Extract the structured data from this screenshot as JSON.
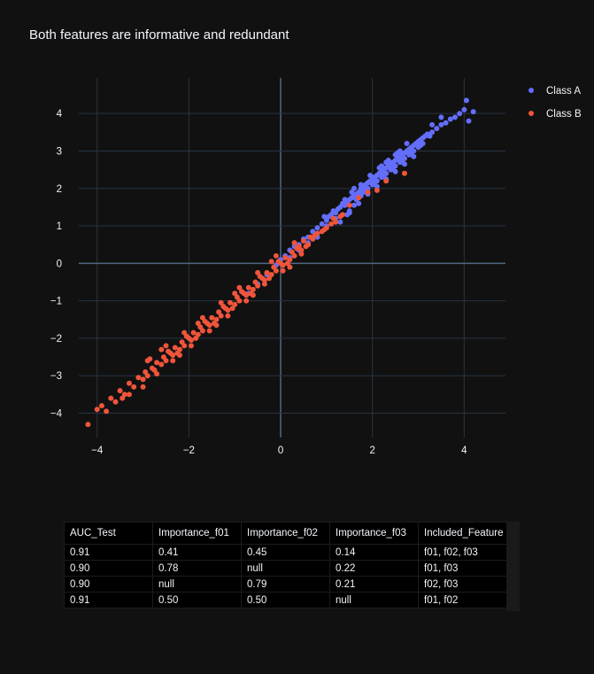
{
  "chart_data": {
    "type": "scatter",
    "title": "Both features are informative and redundant",
    "xlabel": "",
    "ylabel": "",
    "xlim": [
      -4.4,
      4.9
    ],
    "ylim": [
      -4.65,
      4.95
    ],
    "x_ticks": [
      -4,
      -2,
      0,
      2,
      4
    ],
    "x_tick_labels": [
      "−4",
      "−2",
      "0",
      "2",
      "4"
    ],
    "y_ticks": [
      -4,
      -3,
      -2,
      -1,
      0,
      1,
      2,
      3,
      4
    ],
    "y_tick_labels": [
      "−4",
      "−3",
      "−2",
      "−1",
      "0",
      "1",
      "2",
      "3",
      "4"
    ],
    "grid": true,
    "legend_position": "top-right",
    "series": [
      {
        "name": "Class A",
        "color": "#636efa",
        "points": [
          [
            -0.7,
            -0.8
          ],
          [
            -0.5,
            -0.55
          ],
          [
            -0.3,
            -0.3
          ],
          [
            -0.1,
            -0.05
          ],
          [
            0.0,
            0.1
          ],
          [
            0.1,
            0.2
          ],
          [
            0.2,
            0.35
          ],
          [
            0.3,
            0.45
          ],
          [
            0.4,
            0.5
          ],
          [
            0.5,
            0.65
          ],
          [
            0.6,
            0.7
          ],
          [
            0.7,
            0.85
          ],
          [
            0.8,
            0.95
          ],
          [
            0.9,
            1.05
          ],
          [
            1.0,
            1.15
          ],
          [
            1.05,
            1.25
          ],
          [
            1.1,
            1.3
          ],
          [
            1.2,
            1.35
          ],
          [
            1.25,
            1.45
          ],
          [
            1.3,
            1.5
          ],
          [
            1.4,
            1.55
          ],
          [
            1.45,
            1.65
          ],
          [
            1.5,
            1.7
          ],
          [
            1.55,
            1.75
          ],
          [
            1.6,
            1.8
          ],
          [
            1.65,
            1.85
          ],
          [
            1.7,
            1.9
          ],
          [
            1.75,
            2.0
          ],
          [
            1.8,
            2.05
          ],
          [
            1.85,
            2.1
          ],
          [
            1.9,
            2.15
          ],
          [
            1.95,
            2.2
          ],
          [
            2.0,
            2.25
          ],
          [
            2.05,
            2.3
          ],
          [
            2.1,
            2.35
          ],
          [
            2.15,
            2.4
          ],
          [
            2.2,
            2.45
          ],
          [
            2.25,
            2.5
          ],
          [
            2.3,
            2.55
          ],
          [
            2.35,
            2.6
          ],
          [
            2.4,
            2.65
          ],
          [
            2.45,
            2.7
          ],
          [
            2.5,
            2.75
          ],
          [
            2.55,
            2.8
          ],
          [
            2.6,
            2.85
          ],
          [
            2.65,
            2.9
          ],
          [
            2.7,
            2.95
          ],
          [
            2.75,
            3.0
          ],
          [
            2.8,
            3.05
          ],
          [
            2.85,
            3.1
          ],
          [
            2.9,
            3.15
          ],
          [
            2.95,
            3.2
          ],
          [
            3.0,
            3.25
          ],
          [
            3.05,
            3.3
          ],
          [
            3.1,
            3.35
          ],
          [
            3.15,
            3.4
          ],
          [
            3.2,
            3.45
          ],
          [
            3.3,
            3.5
          ],
          [
            3.4,
            3.6
          ],
          [
            3.5,
            3.7
          ],
          [
            3.6,
            3.75
          ],
          [
            3.7,
            3.85
          ],
          [
            3.8,
            3.9
          ],
          [
            3.9,
            4.0
          ],
          [
            4.0,
            4.1
          ],
          [
            4.05,
            4.35
          ],
          [
            4.2,
            4.05
          ],
          [
            4.1,
            3.8
          ],
          [
            3.5,
            3.9
          ],
          [
            3.3,
            3.7
          ],
          [
            1.6,
            1.55
          ],
          [
            1.8,
            1.9
          ],
          [
            2.0,
            2.1
          ],
          [
            2.2,
            2.3
          ],
          [
            2.4,
            2.5
          ],
          [
            2.6,
            2.7
          ],
          [
            2.8,
            2.9
          ],
          [
            3.0,
            3.1
          ],
          [
            2.2,
            2.6
          ],
          [
            2.5,
            2.9
          ],
          [
            1.4,
            1.7
          ],
          [
            1.6,
            2.0
          ],
          [
            1.7,
            1.75
          ],
          [
            1.9,
            2.0
          ],
          [
            2.1,
            2.2
          ],
          [
            2.3,
            2.4
          ],
          [
            2.5,
            2.6
          ],
          [
            2.7,
            2.8
          ],
          [
            2.9,
            3.0
          ],
          [
            3.1,
            3.2
          ],
          [
            1.5,
            1.4
          ],
          [
            1.7,
            1.6
          ],
          [
            1.9,
            1.85
          ],
          [
            2.1,
            2.05
          ],
          [
            2.3,
            2.25
          ],
          [
            2.5,
            2.45
          ],
          [
            2.7,
            2.65
          ],
          [
            2.9,
            2.85
          ],
          [
            1.2,
            1.2
          ],
          [
            1.0,
            1.0
          ],
          [
            0.8,
            0.7
          ],
          [
            0.6,
            0.55
          ],
          [
            0.4,
            0.35
          ],
          [
            0.2,
            0.15
          ],
          [
            1.3,
            1.1
          ],
          [
            1.5,
            1.35
          ],
          [
            1.75,
            1.8
          ],
          [
            2.0,
            2.3
          ],
          [
            2.3,
            2.7
          ],
          [
            2.6,
            3.0
          ],
          [
            1.45,
            1.3
          ],
          [
            1.65,
            1.7
          ],
          [
            1.85,
            1.95
          ],
          [
            2.05,
            2.15
          ],
          [
            2.25,
            2.35
          ],
          [
            2.45,
            2.55
          ],
          [
            2.65,
            2.75
          ],
          [
            2.85,
            2.95
          ],
          [
            3.05,
            3.15
          ],
          [
            3.25,
            3.4
          ],
          [
            1.55,
            1.9
          ],
          [
            1.75,
            2.1
          ],
          [
            1.95,
            2.35
          ],
          [
            2.15,
            2.55
          ],
          [
            2.35,
            2.75
          ],
          [
            2.55,
            2.95
          ],
          [
            2.75,
            3.2
          ],
          [
            1.35,
            1.6
          ],
          [
            1.15,
            1.4
          ],
          [
            0.95,
            1.25
          ]
        ]
      },
      {
        "name": "Class B",
        "color": "#ef553b",
        "points": [
          [
            -4.2,
            -4.3
          ],
          [
            -4.0,
            -3.9
          ],
          [
            -3.9,
            -3.8
          ],
          [
            -3.8,
            -3.95
          ],
          [
            -3.7,
            -3.6
          ],
          [
            -3.6,
            -3.7
          ],
          [
            -3.5,
            -3.4
          ],
          [
            -3.4,
            -3.5
          ],
          [
            -3.3,
            -3.2
          ],
          [
            -3.2,
            -3.3
          ],
          [
            -3.1,
            -3.05
          ],
          [
            -3.0,
            -3.1
          ],
          [
            -2.95,
            -2.9
          ],
          [
            -2.9,
            -3.0
          ],
          [
            -2.8,
            -2.8
          ],
          [
            -2.75,
            -2.85
          ],
          [
            -2.7,
            -2.65
          ],
          [
            -2.6,
            -2.7
          ],
          [
            -2.55,
            -2.5
          ],
          [
            -2.5,
            -2.6
          ],
          [
            -2.4,
            -2.4
          ],
          [
            -2.35,
            -2.45
          ],
          [
            -2.3,
            -2.25
          ],
          [
            -2.2,
            -2.3
          ],
          [
            -2.15,
            -2.1
          ],
          [
            -2.1,
            -2.2
          ],
          [
            -2.0,
            -2.0
          ],
          [
            -1.95,
            -2.05
          ],
          [
            -1.9,
            -1.85
          ],
          [
            -1.8,
            -1.9
          ],
          [
            -1.75,
            -1.7
          ],
          [
            -1.7,
            -1.8
          ],
          [
            -1.6,
            -1.6
          ],
          [
            -1.55,
            -1.65
          ],
          [
            -1.5,
            -1.45
          ],
          [
            -1.4,
            -1.5
          ],
          [
            -1.35,
            -1.3
          ],
          [
            -1.3,
            -1.4
          ],
          [
            -1.2,
            -1.2
          ],
          [
            -1.15,
            -1.25
          ],
          [
            -1.1,
            -1.05
          ],
          [
            -1.0,
            -1.1
          ],
          [
            -0.95,
            -0.9
          ],
          [
            -0.9,
            -1.0
          ],
          [
            -0.8,
            -0.8
          ],
          [
            -0.75,
            -0.85
          ],
          [
            -0.7,
            -0.65
          ],
          [
            -0.6,
            -0.7
          ],
          [
            -0.55,
            -0.5
          ],
          [
            -0.5,
            -0.6
          ],
          [
            -0.4,
            -0.4
          ],
          [
            -0.35,
            -0.45
          ],
          [
            -0.3,
            -0.25
          ],
          [
            -0.2,
            -0.3
          ],
          [
            -0.15,
            -0.1
          ],
          [
            -0.1,
            -0.2
          ],
          [
            0.0,
            0.0
          ],
          [
            0.05,
            -0.05
          ],
          [
            0.1,
            0.15
          ],
          [
            0.2,
            0.1
          ],
          [
            0.25,
            0.3
          ],
          [
            0.3,
            0.2
          ],
          [
            0.4,
            0.45
          ],
          [
            0.45,
            0.35
          ],
          [
            0.5,
            0.6
          ],
          [
            0.6,
            0.5
          ],
          [
            0.65,
            0.7
          ],
          [
            0.7,
            0.65
          ],
          [
            0.8,
            0.8
          ],
          [
            0.9,
            0.85
          ],
          [
            1.0,
            0.95
          ],
          [
            1.1,
            1.05
          ],
          [
            1.2,
            1.1
          ],
          [
            1.3,
            1.25
          ],
          [
            1.5,
            1.55
          ],
          [
            1.7,
            1.75
          ],
          [
            1.9,
            1.9
          ],
          [
            2.1,
            1.95
          ],
          [
            2.3,
            2.2
          ],
          [
            2.7,
            2.4
          ],
          [
            -2.6,
            -2.3
          ],
          [
            -2.2,
            -2.45
          ],
          [
            -1.8,
            -1.6
          ],
          [
            -1.4,
            -1.65
          ],
          [
            -1.0,
            -0.8
          ],
          [
            -0.6,
            -0.85
          ],
          [
            -0.2,
            0.05
          ],
          [
            0.2,
            -0.1
          ],
          [
            -2.9,
            -2.6
          ],
          [
            -3.3,
            -3.5
          ],
          [
            -2.45,
            -2.35
          ],
          [
            -2.05,
            -1.95
          ],
          [
            -1.65,
            -1.55
          ],
          [
            -1.25,
            -1.15
          ],
          [
            -0.85,
            -0.75
          ],
          [
            -0.45,
            -0.35
          ],
          [
            -0.05,
            0.05
          ],
          [
            0.35,
            0.4
          ],
          [
            0.75,
            0.75
          ],
          [
            1.15,
            1.2
          ],
          [
            -2.25,
            -2.4
          ],
          [
            -1.85,
            -2.0
          ],
          [
            -1.45,
            -1.6
          ],
          [
            -1.05,
            -1.2
          ],
          [
            -0.65,
            -0.8
          ],
          [
            -0.25,
            -0.4
          ],
          [
            0.15,
            0.0
          ],
          [
            0.55,
            0.45
          ],
          [
            0.95,
            0.9
          ],
          [
            1.35,
            1.3
          ],
          [
            -3.0,
            -3.3
          ],
          [
            -2.7,
            -2.95
          ],
          [
            -2.35,
            -2.6
          ],
          [
            -1.95,
            -2.2
          ],
          [
            -1.55,
            -1.8
          ],
          [
            -1.15,
            -1.4
          ],
          [
            -0.75,
            -1.0
          ],
          [
            -0.35,
            -0.55
          ],
          [
            0.05,
            -0.2
          ],
          [
            0.45,
            0.25
          ],
          [
            -3.45,
            -3.6
          ],
          [
            -2.85,
            -2.55
          ],
          [
            -2.5,
            -2.2
          ],
          [
            -2.1,
            -1.85
          ],
          [
            -1.7,
            -1.45
          ],
          [
            -1.3,
            -1.05
          ],
          [
            -0.9,
            -0.65
          ],
          [
            -0.5,
            -0.25
          ],
          [
            -0.1,
            0.2
          ],
          [
            0.3,
            0.55
          ]
        ]
      }
    ]
  },
  "table": {
    "headers": [
      "AUC_Test",
      "Importance_f01",
      "Importance_f02",
      "Importance_f03",
      "Included_Feature"
    ],
    "rows": [
      [
        "0.91",
        "0.41",
        "0.45",
        "0.14",
        "f01, f02, f03"
      ],
      [
        "0.90",
        "0.78",
        "null",
        "0.22",
        "f01, f03"
      ],
      [
        "0.90",
        "null",
        "0.79",
        "0.21",
        "f02, f03"
      ],
      [
        "0.91",
        "0.50",
        "0.50",
        "null",
        "f01, f02"
      ]
    ]
  },
  "colors": {
    "background": "#111111",
    "grid": "#283442",
    "zero_line": "#506784",
    "text": "#f2f5fa",
    "table_bg": "#000000"
  }
}
